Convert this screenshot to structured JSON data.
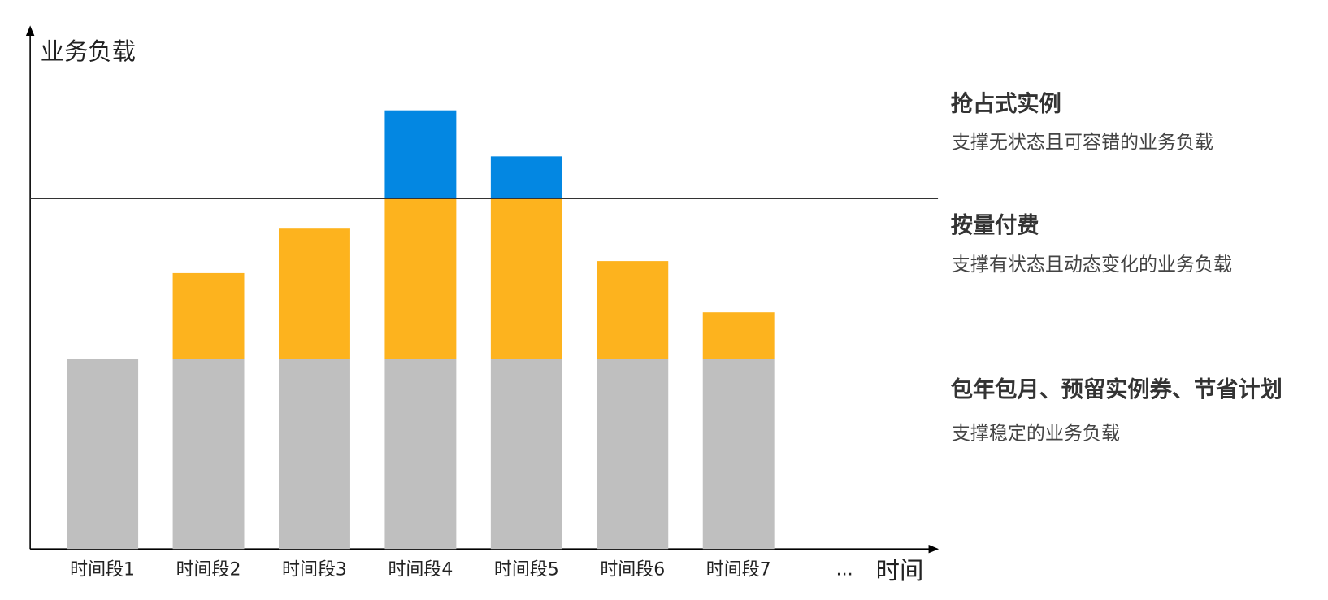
{
  "chart_data": {
    "type": "stacked_bar",
    "y_label": "业务负载",
    "x_label": "时间",
    "categories": [
      "时间段1",
      "时间段2",
      "时间段3",
      "时间段4",
      "时间段5",
      "时间段6",
      "时间段7",
      "..."
    ],
    "series": [
      {
        "name": "包年包月、预留实例券、节省计划",
        "description": "支撑稳定的业务负载",
        "color": "#bfbfbf",
        "values": [
          36.3,
          36.3,
          36.3,
          36.3,
          36.3,
          36.3,
          36.3,
          null
        ]
      },
      {
        "name": "按量付费",
        "description": "支撑有状态且动态变化的业务负载",
        "color": "#fdb31e",
        "values": [
          null,
          16.4,
          24.9,
          30.6,
          30.6,
          18.7,
          8.9,
          null
        ]
      },
      {
        "name": "抢占式实例",
        "description": "支撑无状态且可容错的业务负载",
        "color": "#0387e2",
        "values": [
          null,
          null,
          null,
          16.9,
          8.1,
          null,
          null,
          null
        ]
      }
    ],
    "hlines": [
      36.3,
      66.9
    ],
    "ylim": [
      0,
      100
    ]
  }
}
